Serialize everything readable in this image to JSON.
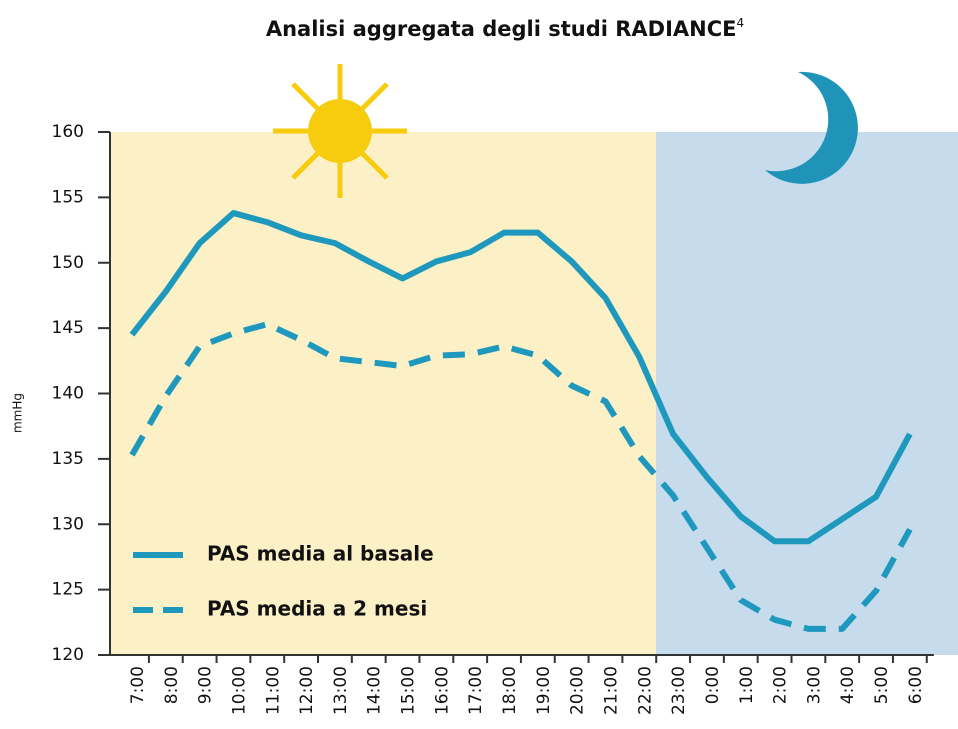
{
  "chart_data": {
    "type": "line",
    "title": "Analisi aggregata degli studi RADIANCE",
    "title_superscript": "4",
    "y_label": "mmHg",
    "categories": [
      "7:00",
      "8:00",
      "9:00",
      "10:00",
      "11:00",
      "12:00",
      "13:00",
      "14:00",
      "15:00",
      "16:00",
      "17:00",
      "18:00",
      "19:00",
      "20:00",
      "21:00",
      "22:00",
      "23:00",
      "0:00",
      "1:00",
      "2:00",
      "3:00",
      "4:00",
      "5:00",
      "6:00"
    ],
    "series": [
      {
        "name": "PAS media al basale",
        "color": "#1f98bd",
        "dash": false,
        "values": [
          144.5,
          147.8,
          151.5,
          153.8,
          153.1,
          152.1,
          151.5,
          150.1,
          148.8,
          150.1,
          150.8,
          152.3,
          152.3,
          150.1,
          147.3,
          142.8,
          136.9,
          133.6,
          130.6,
          128.7,
          128.7,
          130.4,
          132.1,
          136.9
        ]
      },
      {
        "name": "PAS media a 2 mesi",
        "color": "#1f98bd",
        "dash": true,
        "values": [
          135.3,
          139.8,
          143.6,
          144.6,
          145.3,
          144.1,
          142.7,
          142.4,
          142.1,
          142.9,
          143.0,
          143.6,
          142.9,
          140.6,
          139.4,
          135.2,
          132.2,
          128.2,
          124.2,
          122.7,
          122.0,
          122.0,
          124.9,
          129.6
        ]
      }
    ],
    "ylim": [
      120,
      160
    ],
    "yticks": [
      120,
      125,
      130,
      135,
      140,
      145,
      150,
      155,
      160
    ]
  }
}
